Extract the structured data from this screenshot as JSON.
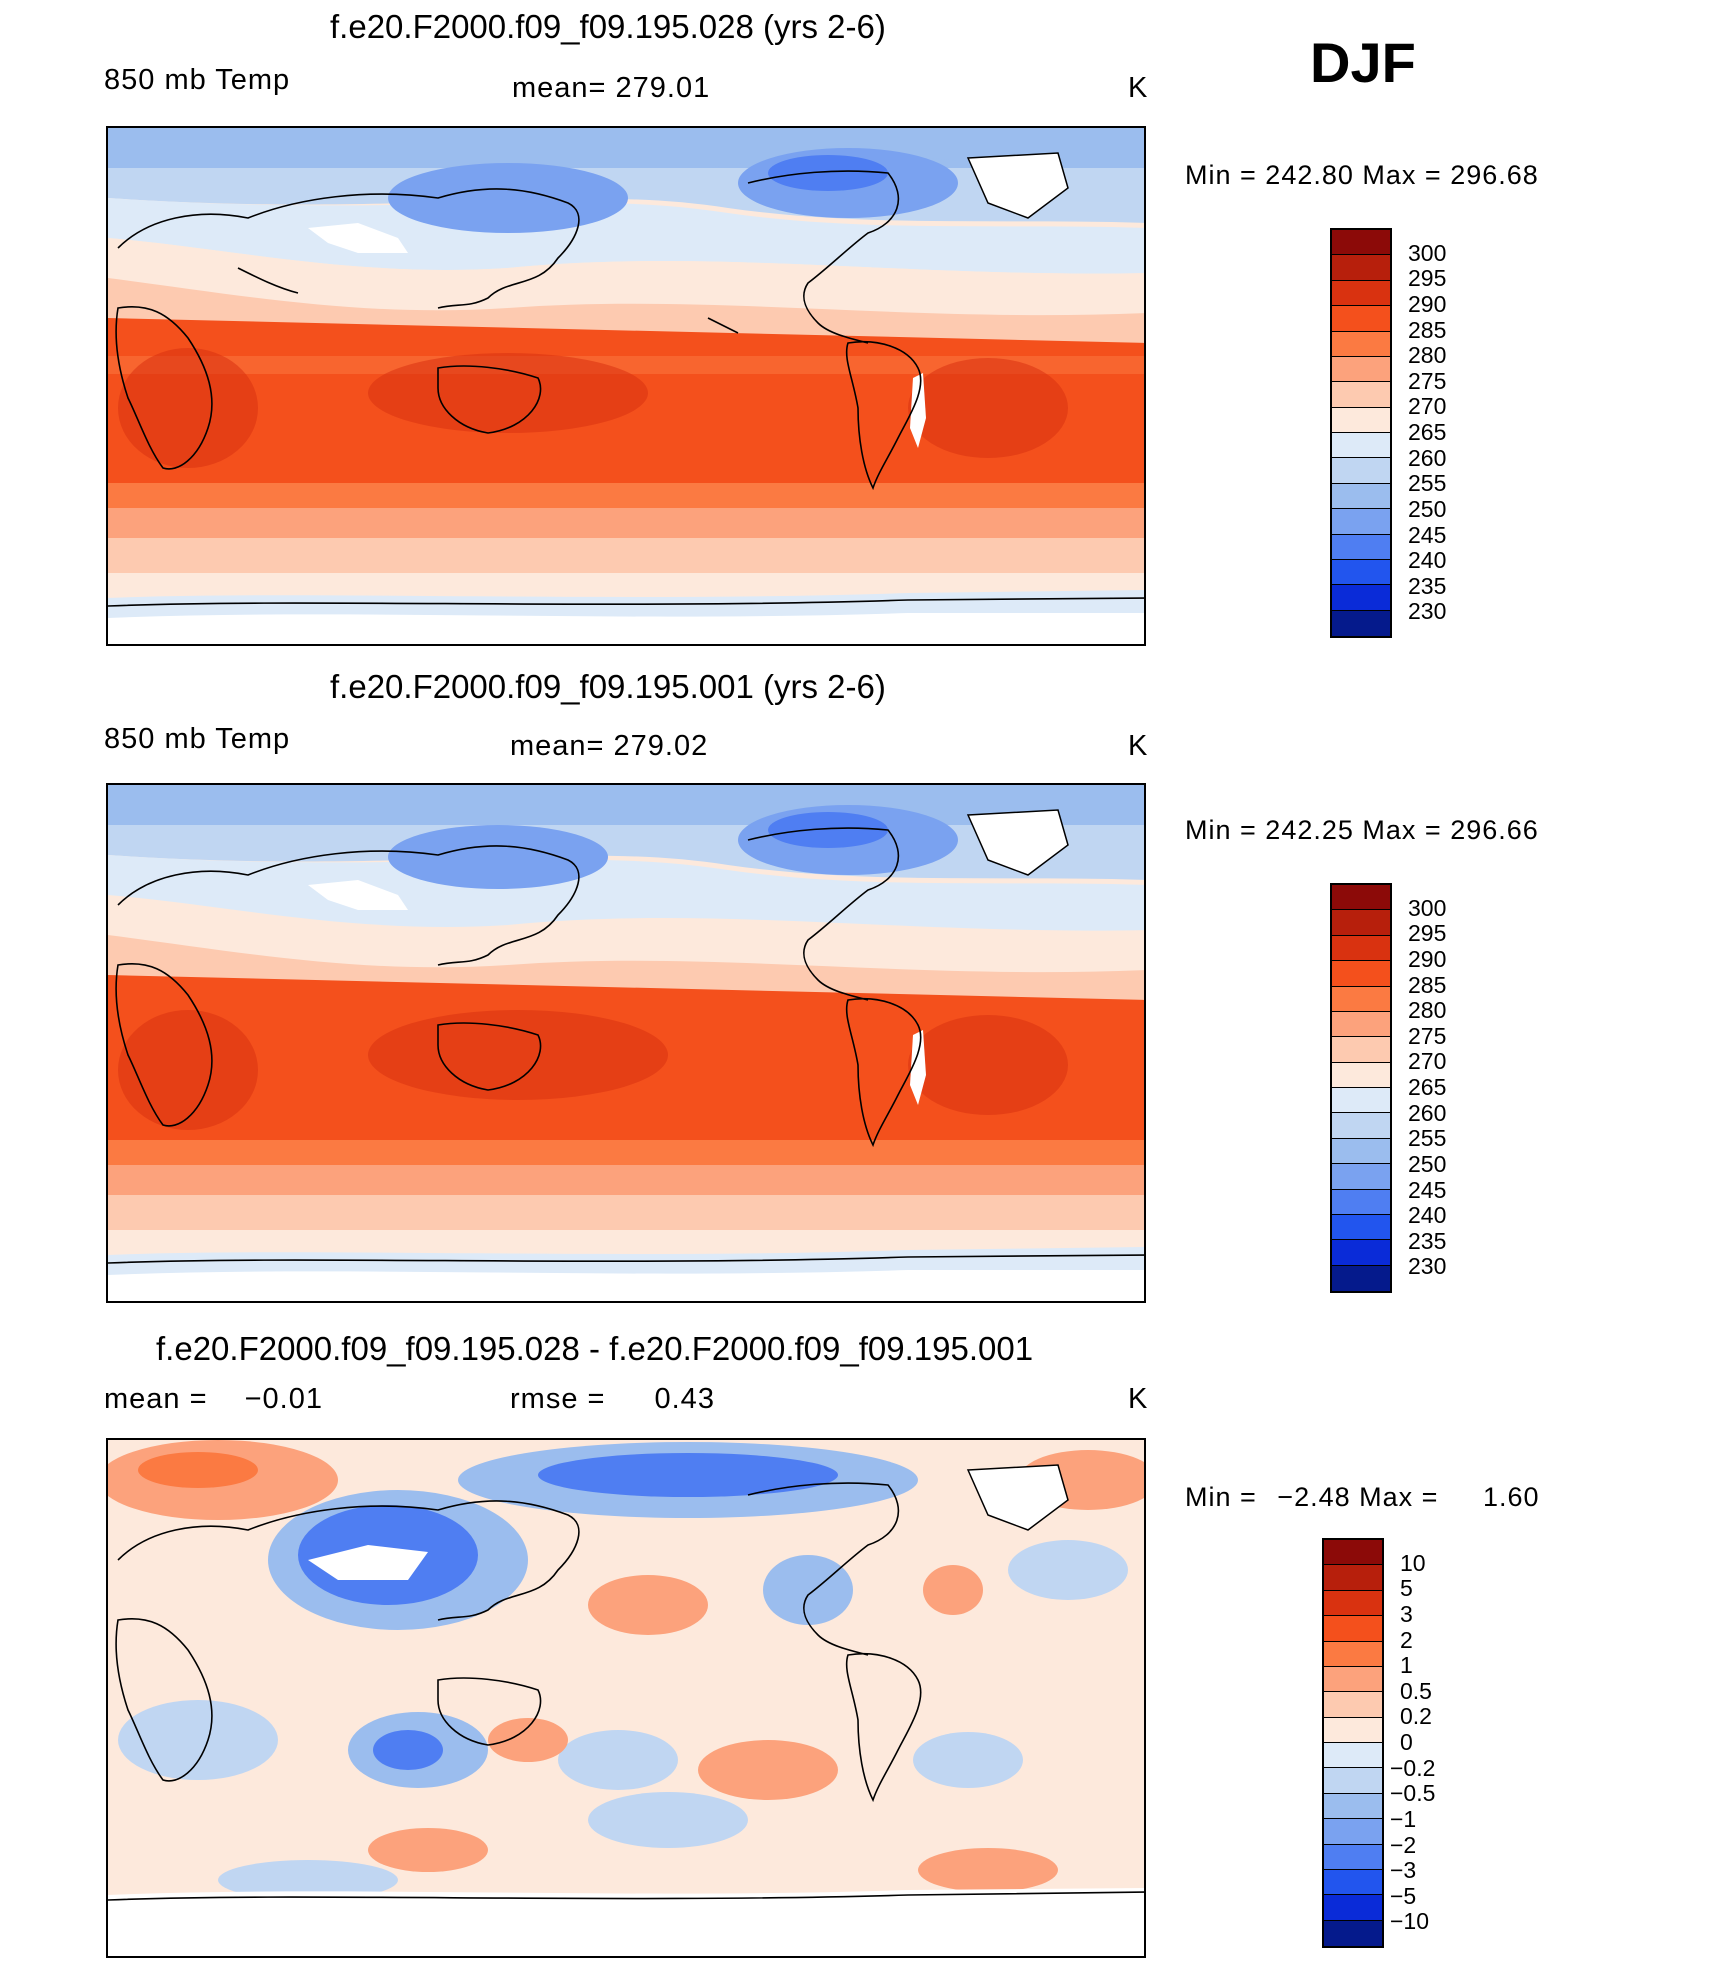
{
  "season": "DJF",
  "panels": [
    {
      "title": "f.e20.F2000.f09_f09.195.028 (yrs 2-6)",
      "left_label": "850 mb Temp",
      "mid_label": "mean=",
      "mid_value": "279.01",
      "units": "K",
      "min_label": "Min =",
      "min_value": "242.80",
      "max_label": "Max =",
      "max_value": "296.68",
      "scale": "abs",
      "legend_labels": [
        "300",
        "295",
        "290",
        "285",
        "280",
        "275",
        "270",
        "265",
        "260",
        "255",
        "250",
        "245",
        "240",
        "235",
        "230"
      ]
    },
    {
      "title": "f.e20.F2000.f09_f09.195.001 (yrs 2-6)",
      "left_label": "850 mb Temp",
      "mid_label": "mean=",
      "mid_value": "279.02",
      "units": "K",
      "min_label": "Min =",
      "min_value": "242.25",
      "max_label": "Max =",
      "max_value": "296.66",
      "scale": "abs",
      "legend_labels": [
        "300",
        "295",
        "290",
        "285",
        "280",
        "275",
        "270",
        "265",
        "260",
        "255",
        "250",
        "245",
        "240",
        "235",
        "230"
      ]
    },
    {
      "title": "f.e20.F2000.f09_f09.195.028 - f.e20.F2000.f09_f09.195.001",
      "left_label": "mean =",
      "left_value": "−0.01",
      "mid_label": "rmse =",
      "mid_value": "0.43",
      "units": "K",
      "min_label": "Min =",
      "min_value": "−2.48",
      "max_label": "Max =",
      "max_value": "1.60",
      "scale": "diff",
      "legend_labels": [
        "10",
        "5",
        "3",
        "2",
        "1",
        "0.5",
        "0.2",
        "0",
        "−0.2",
        "−0.5",
        "−1",
        "−2",
        "−3",
        "−5",
        "−10"
      ]
    }
  ],
  "colors": {
    "abs_scale": [
      "#8c0a08",
      "#b71f0c",
      "#d93210",
      "#f4501c",
      "#fb7a42",
      "#fca27c",
      "#fdcab0",
      "#fde9dc",
      "#ddeaf8",
      "#c0d6f2",
      "#9bbdee",
      "#7aa2f0",
      "#4f7ef2",
      "#2255ee",
      "#0a2bd8",
      "#051a8c"
    ],
    "diff_scale": [
      "#8c0a08",
      "#b71f0c",
      "#d93210",
      "#f4501c",
      "#fb7a42",
      "#fca27c",
      "#fdcab0",
      "#fde9dc",
      "#ddeaf8",
      "#c0d6f2",
      "#9bbdee",
      "#7aa2f0",
      "#4f7ef2",
      "#2255ee",
      "#0a2bd8",
      "#051a8c"
    ]
  }
}
